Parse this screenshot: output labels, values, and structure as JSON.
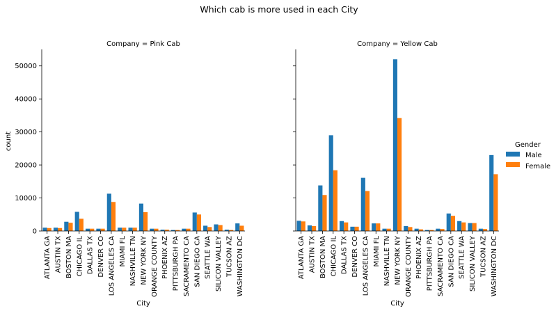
{
  "figure": {
    "suptitle": "Which cab is more used in each City"
  },
  "chart_data": [
    {
      "type": "bar",
      "title": "Company = Pink Cab",
      "xlabel": "City",
      "ylabel": "count",
      "ylim": [
        0,
        55000
      ],
      "yticks": [
        0,
        10000,
        20000,
        30000,
        40000,
        50000
      ],
      "categories": [
        "ATLANTA GA",
        "AUSTIN TX",
        "BOSTON MA",
        "CHICAGO IL",
        "DALLAS TX",
        "DENVER CO",
        "LOS ANGELES CA",
        "MIAMI FL",
        "NASHVILLE TN",
        "NEW YORK NY",
        "ORANGE COUNTY",
        "PHOENIX AZ",
        "PITTSBURGH PA",
        "SACRAMENTO CA",
        "SAN DIEGO CA",
        "SEATTLE WA",
        "SILICON VALLEY",
        "TUCSON AZ",
        "WASHINGTON DC"
      ],
      "series": [
        {
          "name": "Male",
          "color": "#1f77b4",
          "values": [
            1000,
            1000,
            2800,
            5800,
            700,
            700,
            11300,
            1000,
            1000,
            8300,
            700,
            400,
            300,
            700,
            5600,
            1600,
            2000,
            400,
            2300
          ]
        },
        {
          "name": "Female",
          "color": "#ff7f0e",
          "values": [
            900,
            900,
            2500,
            3700,
            700,
            700,
            8800,
            1000,
            1000,
            5700,
            700,
            400,
            300,
            700,
            5000,
            1200,
            1800,
            300,
            1600
          ]
        }
      ]
    },
    {
      "type": "bar",
      "title": "Company = Yellow Cab",
      "xlabel": "City",
      "ylabel": "",
      "ylim": [
        0,
        55000
      ],
      "yticks": [
        0,
        10000,
        20000,
        30000,
        40000,
        50000
      ],
      "categories": [
        "ATLANTA GA",
        "AUSTIN TX",
        "BOSTON MA",
        "CHICAGO IL",
        "DALLAS TX",
        "DENVER CO",
        "LOS ANGELES CA",
        "MIAMI FL",
        "NASHVILLE TN",
        "NEW YORK NY",
        "ORANGE COUNTY",
        "PHOENIX AZ",
        "PITTSBURGH PA",
        "SACRAMENTO CA",
        "SAN DIEGO CA",
        "SEATTLE WA",
        "SILICON VALLEY",
        "TUCSON AZ",
        "WASHINGTON DC"
      ],
      "series": [
        {
          "name": "Male",
          "color": "#1f77b4",
          "values": [
            3100,
            1700,
            13800,
            29000,
            3000,
            1300,
            16100,
            2300,
            700,
            52000,
            1500,
            700,
            300,
            700,
            5300,
            3000,
            2400,
            700,
            23000
          ]
        },
        {
          "name": "Female",
          "color": "#ff7f0e",
          "values": [
            2900,
            1500,
            10900,
            18400,
            2600,
            1300,
            12100,
            2300,
            700,
            34200,
            1200,
            500,
            300,
            600,
            4600,
            2600,
            2400,
            600,
            17200
          ]
        }
      ]
    }
  ],
  "legend": {
    "title": "Gender",
    "placement": "right",
    "entries": [
      {
        "label": "Male",
        "color": "#1f77b4"
      },
      {
        "label": "Female",
        "color": "#ff7f0e"
      }
    ]
  }
}
